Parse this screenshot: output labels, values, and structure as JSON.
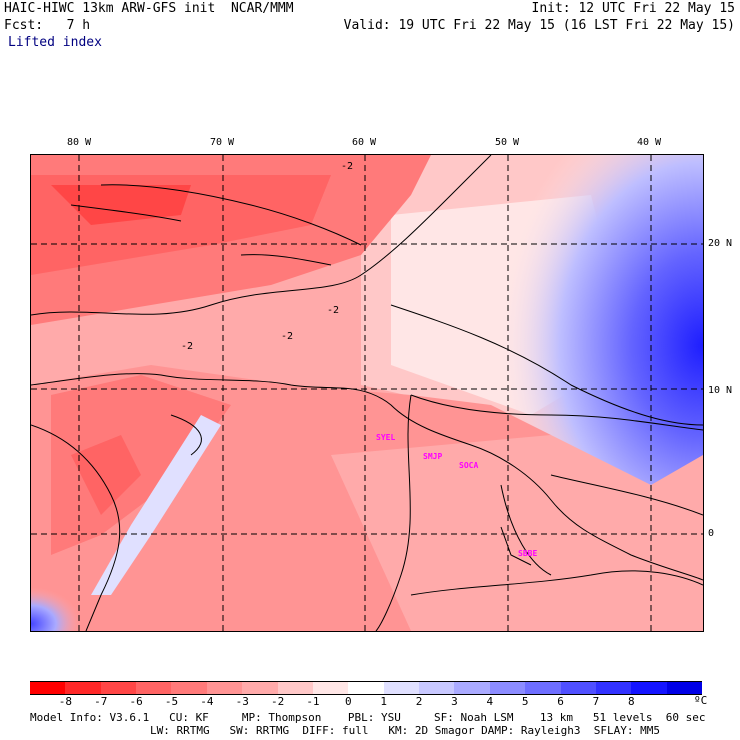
{
  "header": {
    "title": "HAIC-HIWC 13km ARW-GFS init  NCAR/MMM",
    "forecast": "Fcst:   7 h",
    "field": "Lifted index",
    "init": "Init: 12 UTC Fri 22 May 15",
    "valid": "Valid: 19 UTC Fri 22 May 15 (16 LST Fri 22 May 15)"
  },
  "axes": {
    "lon_labels": [
      "80 W",
      "70 W",
      "60 W",
      "50 W",
      "40 W"
    ],
    "lat_labels": [
      "20 N",
      "10 N",
      "0"
    ]
  },
  "map": {
    "contour_labels": [
      "-2",
      "-2",
      "-2",
      "-2"
    ],
    "stations": [
      "SYEL",
      "SMJP",
      "SOCA",
      "SBBE"
    ]
  },
  "colorbar": {
    "ticks": [
      "-8",
      "-7",
      "-6",
      "-5",
      "-4",
      "-3",
      "-2",
      "-1",
      "0",
      "1",
      "2",
      "3",
      "4",
      "5",
      "6",
      "7",
      "8"
    ],
    "unit": "ºC",
    "colors": [
      "#ff0000",
      "#ff2828",
      "#ff4646",
      "#ff6464",
      "#ff7a7a",
      "#ff9494",
      "#ffaaaa",
      "#ffc8c8",
      "#ffe6e6",
      "#ffffff",
      "#e0e0ff",
      "#c8c8ff",
      "#aaaaff",
      "#8c8cff",
      "#6e6eff",
      "#5050ff",
      "#3232ff",
      "#1414ff",
      "#0000e6"
    ]
  },
  "footer": {
    "line1": "Model Info: V3.6.1   CU: KF     MP: Thompson    PBL: YSU     SF: Noah LSM    13 km   51 levels  60 sec",
    "line2": "LW: RRTMG   SW: RRTMG  DIFF: full   KM: 2D Smagor DAMP: Rayleigh3  SFLAY: MM5"
  }
}
